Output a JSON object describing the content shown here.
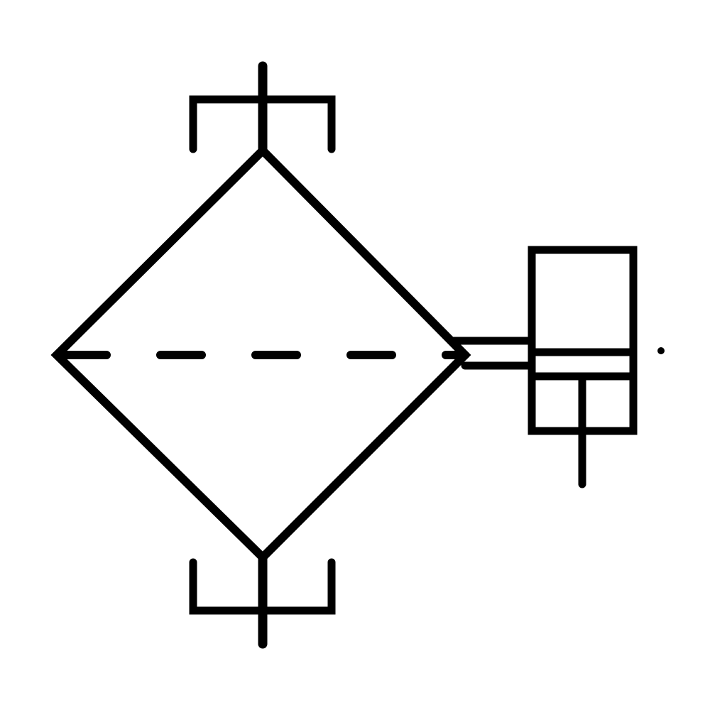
{
  "diagram": {
    "kind": "hydraulic-filter-with-clogging-indicator",
    "colors": {
      "background": "#ffffff",
      "line": "#000000"
    },
    "components": [
      "filter-element",
      "inlet-port",
      "outlet-port",
      "internal-filter-line",
      "clogging-indicator"
    ]
  }
}
